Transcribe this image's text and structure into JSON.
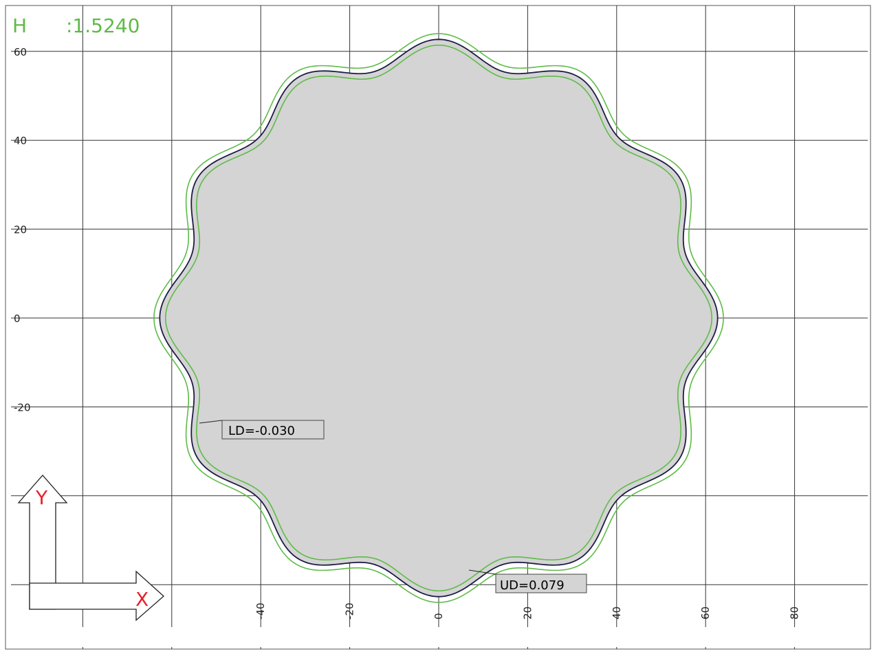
{
  "header": {
    "label": "H",
    "value": ":1.5240",
    "color": "#5dbb46"
  },
  "axes": {
    "x_ticks": [
      "-40",
      "-20",
      "0",
      "20",
      "40",
      "60",
      "80"
    ],
    "y_ticks": [
      "60",
      "40",
      "20",
      "0",
      "-20"
    ],
    "x_label": "X",
    "y_label": "Y",
    "arrow_label_color": "#e8202a"
  },
  "shape": {
    "lobes": 12,
    "mean_radius": 60,
    "amplitude": 2.7,
    "band_offsets": [
      -1.3,
      1.3
    ],
    "fill_color": "#d4d4d4",
    "nominal_color": "#1c1c44",
    "band_color": "#5dbb46"
  },
  "annotations": {
    "ld": "LD=-0.030",
    "ud": "UD=0.079"
  }
}
